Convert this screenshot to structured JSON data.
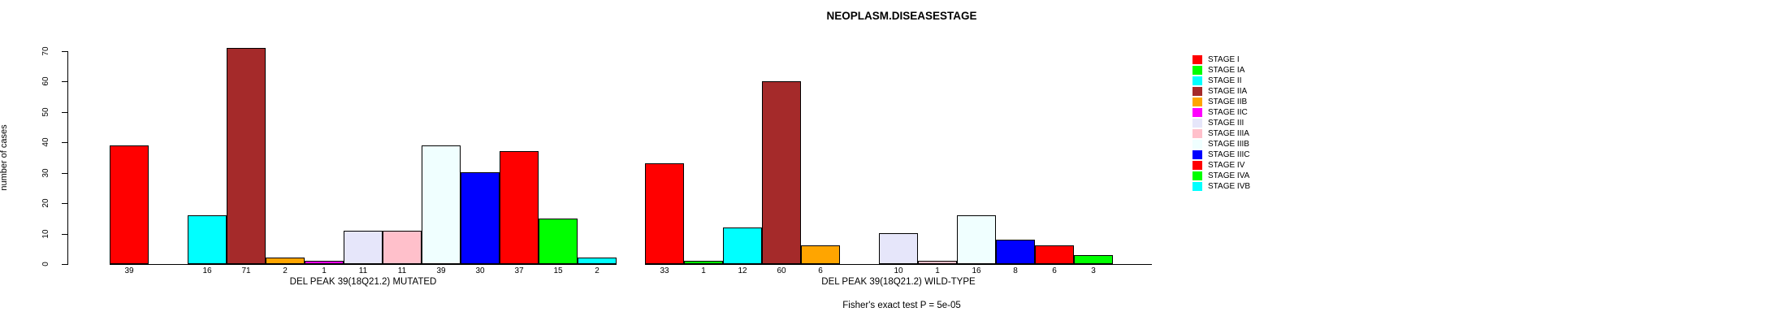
{
  "title": "NEOPLASM.DISEASESTAGE",
  "footer": {
    "fisher_text": "Fisher's exact test P = 5e-05"
  },
  "chart_data": {
    "type": "bar",
    "title": "NEOPLASM.DISEASESTAGE",
    "xlabel": "",
    "ylabel": "number of cases",
    "ylim": [
      0,
      70
    ],
    "yticks": [
      0,
      10,
      20,
      30,
      40,
      50,
      60,
      70
    ],
    "grid": false,
    "legend_position": "right",
    "categories": [
      "STAGE I",
      "STAGE IA",
      "STAGE II",
      "STAGE IIA",
      "STAGE IIB",
      "STAGE IIC",
      "STAGE III",
      "STAGE IIIA",
      "STAGE IIIB",
      "STAGE IIIC",
      "STAGE IV",
      "STAGE IVA",
      "STAGE IVB"
    ],
    "colors": [
      "#FF0000",
      "#00FF00",
      "#00FFFF",
      "#A52A2A",
      "#FFA500",
      "#FF00FF",
      "#E6E6FA",
      "#FFC0CB",
      "#F0FFFF",
      "#0000FF",
      "#FF0000",
      "#00FF00",
      "#00FFFF"
    ],
    "series": [
      {
        "name": "DEL PEAK 39(18Q21.2) MUTATED",
        "values": [
          39,
          0,
          16,
          71,
          2,
          1,
          11,
          11,
          39,
          30,
          37,
          15,
          2
        ]
      },
      {
        "name": "DEL PEAK 39(18Q21.2) WILD-TYPE",
        "values": [
          33,
          1,
          12,
          60,
          6,
          0,
          10,
          1,
          16,
          8,
          6,
          3,
          0
        ]
      }
    ],
    "bar_value_labels": "shown under each bar, omitted when value is 0",
    "annotation": "Fisher's exact test P = 5e-05"
  },
  "legend": {
    "items": [
      {
        "label": "STAGE I",
        "color": "#FF0000"
      },
      {
        "label": "STAGE IA",
        "color": "#00FF00"
      },
      {
        "label": "STAGE II",
        "color": "#00FFFF"
      },
      {
        "label": "STAGE IIA",
        "color": "#A52A2A"
      },
      {
        "label": "STAGE IIB",
        "color": "#FFA500"
      },
      {
        "label": "STAGE IIC",
        "color": "#FF00FF"
      },
      {
        "label": "STAGE III",
        "color": "#E6E6FA"
      },
      {
        "label": "STAGE IIIA",
        "color": "#FFC0CB"
      },
      {
        "label": "STAGE IIIB",
        "color": "#F0FFFF"
      },
      {
        "label": "STAGE IIIC",
        "color": "#0000FF"
      },
      {
        "label": "STAGE IV",
        "color": "#FF0000"
      },
      {
        "label": "STAGE IVA",
        "color": "#00FF00"
      },
      {
        "label": "STAGE IVB",
        "color": "#00FFFF"
      }
    ]
  }
}
